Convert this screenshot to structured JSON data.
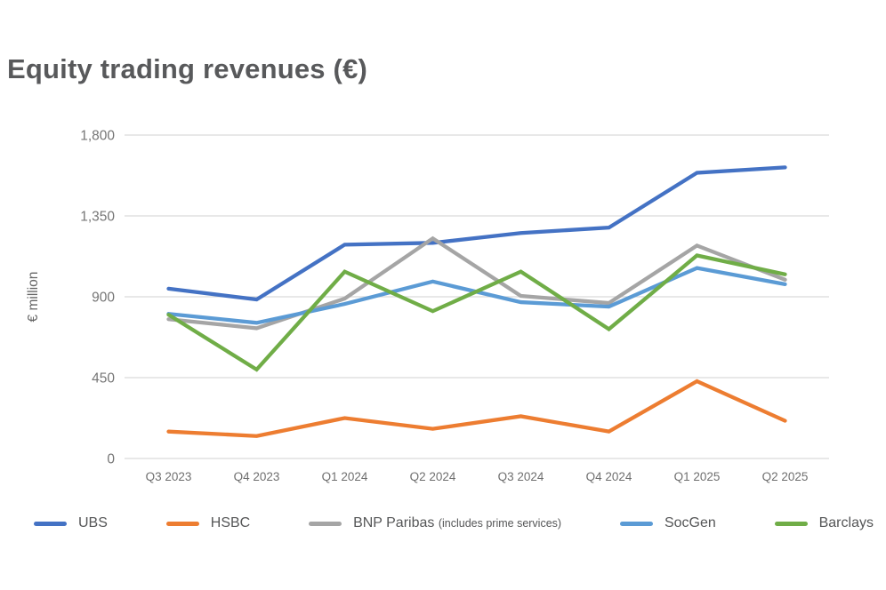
{
  "chart_data": {
    "type": "line",
    "title": "Equity trading revenues (€)",
    "ylabel": "€ million",
    "xlabel": "",
    "categories": [
      "Q3 2023",
      "Q4 2023",
      "Q1 2024",
      "Q2 2024",
      "Q3 2024",
      "Q4 2024",
      "Q1 2025",
      "Q2 2025"
    ],
    "yticks": [
      "0",
      "450",
      "900",
      "1,350",
      "1,800"
    ],
    "ylim": [
      0,
      1800
    ],
    "grid": "horizontal",
    "legend_position": "bottom",
    "series": [
      {
        "name": "UBS",
        "name_suffix": "",
        "color": "#4472C4",
        "values": [
          945,
          885,
          1190,
          1200,
          1255,
          1285,
          1590,
          1620
        ]
      },
      {
        "name": "HSBC",
        "name_suffix": "",
        "color": "#ED7D31",
        "values": [
          150,
          125,
          225,
          165,
          235,
          150,
          430,
          210
        ]
      },
      {
        "name": "BNP Paribas",
        "name_suffix": "(includes prime services)",
        "color": "#A5A5A5",
        "values": [
          775,
          725,
          890,
          1225,
          905,
          865,
          1185,
          995
        ]
      },
      {
        "name": "SocGen",
        "name_suffix": "",
        "color": "#5B9BD5",
        "values": [
          805,
          755,
          860,
          985,
          870,
          845,
          1060,
          970
        ]
      },
      {
        "name": "Barclays",
        "name_suffix": "",
        "color": "#70AD47",
        "values": [
          800,
          495,
          1040,
          820,
          1040,
          720,
          1130,
          1025
        ]
      }
    ],
    "colors": {
      "title": "#58595b",
      "axis_text": "#757575",
      "x_axis_text": "#6f6f6f",
      "gridline": "#d9d9d9"
    }
  }
}
